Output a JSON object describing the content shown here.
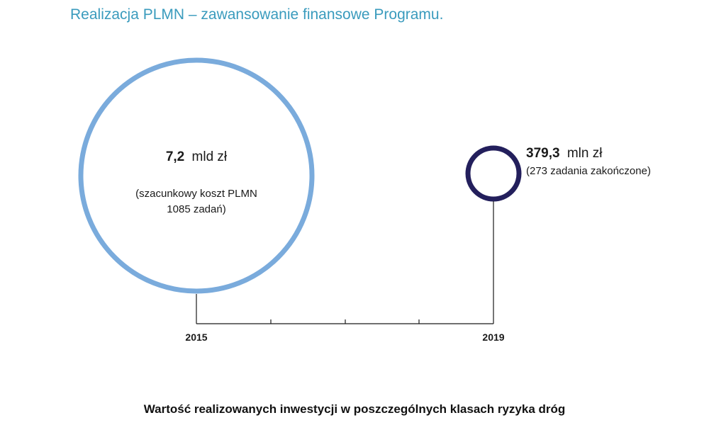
{
  "title": "Realizacja PLMN – zawansowanie finansowe Programu.",
  "subtitle": "Wartość realizowanych inwestycji w poszczególnych klasach ryzyka dróg",
  "colors": {
    "title": "#3a9bbd",
    "circle_2015": "#7aabdc",
    "circle_2019": "#231f5c",
    "axis": "#1a1a1a"
  },
  "chart_data": {
    "type": "bubble",
    "x_ticks": [
      "2015",
      "2019"
    ],
    "points": [
      {
        "year": "2015",
        "value_number": "7,2",
        "value_unit": "mld zł",
        "value_mln_zl": 7200,
        "note_line1": "(szacunkowy koszt PLMN",
        "note_line2": "1085 zadań)",
        "tasks": 1085
      },
      {
        "year": "2019",
        "value_number": "379,3",
        "value_unit": "mln zł",
        "value_mln_zl": 379.3,
        "note_line1": "(273 zadania zakończone)",
        "tasks": 273
      }
    ]
  }
}
